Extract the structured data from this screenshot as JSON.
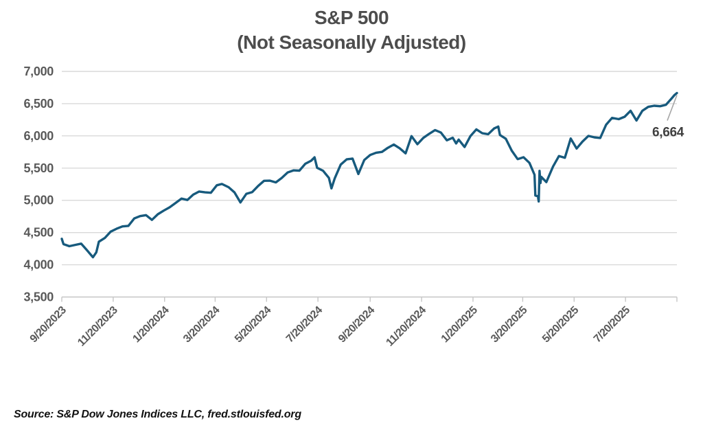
{
  "title": {
    "line1": "S&P 500",
    "line2": "(Not Seasonally Adjusted)"
  },
  "source": "Source: S&P Dow Jones Indices LLC, fred.stlouisfed.org",
  "annotation": {
    "end_value_label": "6,664"
  },
  "colors": {
    "line": "#175a7d",
    "grid": "#d9d9d9",
    "axis": "#c6c6c6",
    "tick_text": "#595959",
    "title_text": "#4d4d4d",
    "annotation_text": "#404040",
    "leader": "#a6a6a6",
    "background": "#ffffff"
  },
  "chart_data": {
    "type": "line",
    "title": "S&P 500 (Not Seasonally Adjusted)",
    "xlabel": "",
    "ylabel": "",
    "legend": "none",
    "grid": "horizontal",
    "ylim": [
      3500,
      7000
    ],
    "y_ticks": [
      {
        "value": 7000,
        "label": "7,000"
      },
      {
        "value": 6500,
        "label": "6,500"
      },
      {
        "value": 6000,
        "label": "6,000"
      },
      {
        "value": 5500,
        "label": "5,500"
      },
      {
        "value": 5000,
        "label": "5,000"
      },
      {
        "value": 4500,
        "label": "4,500"
      },
      {
        "value": 4000,
        "label": "4,000"
      },
      {
        "value": 3500,
        "label": "3,500"
      }
    ],
    "x_span_days": 730,
    "x_ticks": [
      {
        "label": "9/20/2023",
        "day": 0
      },
      {
        "label": "11/20/2023",
        "day": 61
      },
      {
        "label": "1/20/2024",
        "day": 122
      },
      {
        "label": "3/20/2024",
        "day": 182
      },
      {
        "label": "5/20/2024",
        "day": 243
      },
      {
        "label": "7/20/2024",
        "day": 304
      },
      {
        "label": "9/20/2024",
        "day": 366
      },
      {
        "label": "11/20/2024",
        "day": 427
      },
      {
        "label": "1/20/2025",
        "day": 488
      },
      {
        "label": "3/20/2025",
        "day": 547
      },
      {
        "label": "5/20/2025",
        "day": 608
      },
      {
        "label": "7/20/2025",
        "day": 669
      }
    ],
    "series": [
      {
        "name": "S&P 500",
        "points_format": "[day_offset_from_9/20/2023, index_value]",
        "points": [
          [
            0,
            4402
          ],
          [
            2,
            4320
          ],
          [
            9,
            4288
          ],
          [
            16,
            4309
          ],
          [
            23,
            4328
          ],
          [
            30,
            4224
          ],
          [
            37,
            4117
          ],
          [
            41,
            4194
          ],
          [
            44,
            4358
          ],
          [
            51,
            4415
          ],
          [
            58,
            4514
          ],
          [
            65,
            4559
          ],
          [
            72,
            4595
          ],
          [
            79,
            4604
          ],
          [
            86,
            4719
          ],
          [
            93,
            4755
          ],
          [
            100,
            4770
          ],
          [
            107,
            4697
          ],
          [
            114,
            4784
          ],
          [
            121,
            4840
          ],
          [
            128,
            4891
          ],
          [
            135,
            4959
          ],
          [
            142,
            5027
          ],
          [
            149,
            5006
          ],
          [
            156,
            5089
          ],
          [
            163,
            5137
          ],
          [
            170,
            5124
          ],
          [
            177,
            5117
          ],
          [
            184,
            5234
          ],
          [
            190,
            5254
          ],
          [
            198,
            5204
          ],
          [
            205,
            5123
          ],
          [
            212,
            4967
          ],
          [
            219,
            5100
          ],
          [
            226,
            5128
          ],
          [
            233,
            5223
          ],
          [
            240,
            5303
          ],
          [
            247,
            5305
          ],
          [
            254,
            5278
          ],
          [
            261,
            5347
          ],
          [
            268,
            5432
          ],
          [
            275,
            5465
          ],
          [
            282,
            5460
          ],
          [
            289,
            5567
          ],
          [
            296,
            5615
          ],
          [
            300,
            5667
          ],
          [
            303,
            5505
          ],
          [
            310,
            5459
          ],
          [
            317,
            5347
          ],
          [
            320,
            5186
          ],
          [
            324,
            5344
          ],
          [
            331,
            5554
          ],
          [
            338,
            5635
          ],
          [
            345,
            5648
          ],
          [
            352,
            5408
          ],
          [
            359,
            5626
          ],
          [
            366,
            5703
          ],
          [
            373,
            5738
          ],
          [
            380,
            5751
          ],
          [
            387,
            5815
          ],
          [
            394,
            5865
          ],
          [
            401,
            5808
          ],
          [
            408,
            5729
          ],
          [
            415,
            5996
          ],
          [
            422,
            5871
          ],
          [
            429,
            5969
          ],
          [
            436,
            6032
          ],
          [
            443,
            6090
          ],
          [
            450,
            6051
          ],
          [
            457,
            5931
          ],
          [
            464,
            5971
          ],
          [
            468,
            5882
          ],
          [
            471,
            5942
          ],
          [
            478,
            5827
          ],
          [
            485,
            5997
          ],
          [
            492,
            6101
          ],
          [
            499,
            6041
          ],
          [
            506,
            6026
          ],
          [
            513,
            6115
          ],
          [
            518,
            6144
          ],
          [
            520,
            6013
          ],
          [
            527,
            5955
          ],
          [
            534,
            5770
          ],
          [
            541,
            5639
          ],
          [
            548,
            5668
          ],
          [
            555,
            5581
          ],
          [
            561,
            5396
          ],
          [
            562,
            5074
          ],
          [
            565,
            5062
          ],
          [
            566,
            4983
          ],
          [
            567,
            5457
          ],
          [
            568,
            5268
          ],
          [
            569,
            5363
          ],
          [
            575,
            5283
          ],
          [
            583,
            5525
          ],
          [
            590,
            5687
          ],
          [
            597,
            5660
          ],
          [
            604,
            5958
          ],
          [
            611,
            5803
          ],
          [
            618,
            5912
          ],
          [
            625,
            6000
          ],
          [
            632,
            5977
          ],
          [
            639,
            5968
          ],
          [
            646,
            6173
          ],
          [
            653,
            6279
          ],
          [
            661,
            6260
          ],
          [
            668,
            6297
          ],
          [
            675,
            6389
          ],
          [
            682,
            6238
          ],
          [
            689,
            6389
          ],
          [
            696,
            6450
          ],
          [
            703,
            6467
          ],
          [
            710,
            6460
          ],
          [
            717,
            6482
          ],
          [
            724,
            6584
          ],
          [
            727,
            6631
          ],
          [
            730,
            6664
          ]
        ],
        "last_value": 6664,
        "last_value_label": "6,664"
      }
    ]
  }
}
